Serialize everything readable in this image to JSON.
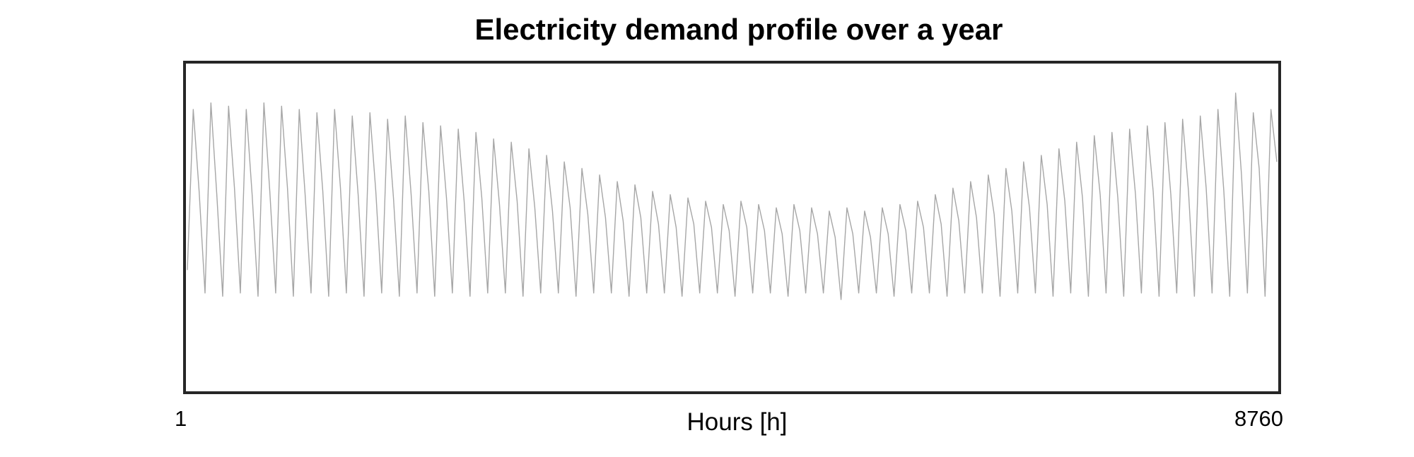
{
  "chart_data": {
    "type": "line",
    "title": "Electricity demand profile over a year",
    "xlabel": "Hours [h]",
    "ylabel": "",
    "x_tick_labels": [
      "1",
      "8760"
    ],
    "xlim": [
      1,
      8760
    ],
    "ylim": [
      0,
      1
    ],
    "grid": false,
    "legend": "none",
    "line_color": "#a6a6a6",
    "frame_color": "#262626",
    "series": [
      {
        "values": [
          0.37,
          0.86,
          0.61,
          0.3,
          0.88,
          0.6,
          0.29,
          0.87,
          0.62,
          0.3,
          0.86,
          0.6,
          0.29,
          0.88,
          0.61,
          0.3,
          0.87,
          0.62,
          0.29,
          0.86,
          0.6,
          0.3,
          0.85,
          0.61,
          0.29,
          0.86,
          0.62,
          0.3,
          0.84,
          0.6,
          0.29,
          0.85,
          0.61,
          0.3,
          0.83,
          0.59,
          0.29,
          0.84,
          0.6,
          0.3,
          0.82,
          0.61,
          0.29,
          0.81,
          0.59,
          0.3,
          0.8,
          0.58,
          0.29,
          0.79,
          0.59,
          0.3,
          0.77,
          0.57,
          0.3,
          0.76,
          0.58,
          0.29,
          0.74,
          0.56,
          0.3,
          0.72,
          0.55,
          0.3,
          0.7,
          0.56,
          0.29,
          0.68,
          0.54,
          0.3,
          0.66,
          0.53,
          0.3,
          0.64,
          0.52,
          0.29,
          0.63,
          0.53,
          0.3,
          0.61,
          0.51,
          0.3,
          0.6,
          0.5,
          0.29,
          0.59,
          0.51,
          0.3,
          0.58,
          0.5,
          0.3,
          0.57,
          0.49,
          0.29,
          0.58,
          0.5,
          0.3,
          0.57,
          0.49,
          0.3,
          0.56,
          0.48,
          0.29,
          0.57,
          0.49,
          0.3,
          0.56,
          0.48,
          0.3,
          0.55,
          0.47,
          0.28,
          0.56,
          0.48,
          0.3,
          0.55,
          0.47,
          0.3,
          0.56,
          0.48,
          0.29,
          0.57,
          0.49,
          0.3,
          0.58,
          0.5,
          0.3,
          0.6,
          0.51,
          0.29,
          0.62,
          0.52,
          0.3,
          0.64,
          0.53,
          0.3,
          0.66,
          0.54,
          0.29,
          0.68,
          0.55,
          0.3,
          0.7,
          0.56,
          0.3,
          0.72,
          0.57,
          0.29,
          0.74,
          0.58,
          0.3,
          0.76,
          0.59,
          0.29,
          0.78,
          0.6,
          0.3,
          0.79,
          0.59,
          0.29,
          0.8,
          0.6,
          0.3,
          0.81,
          0.61,
          0.29,
          0.82,
          0.6,
          0.3,
          0.83,
          0.61,
          0.29,
          0.84,
          0.62,
          0.3,
          0.86,
          0.61,
          0.29,
          0.91,
          0.66,
          0.3,
          0.85,
          0.68,
          0.29,
          0.86,
          0.7
        ]
      }
    ]
  }
}
